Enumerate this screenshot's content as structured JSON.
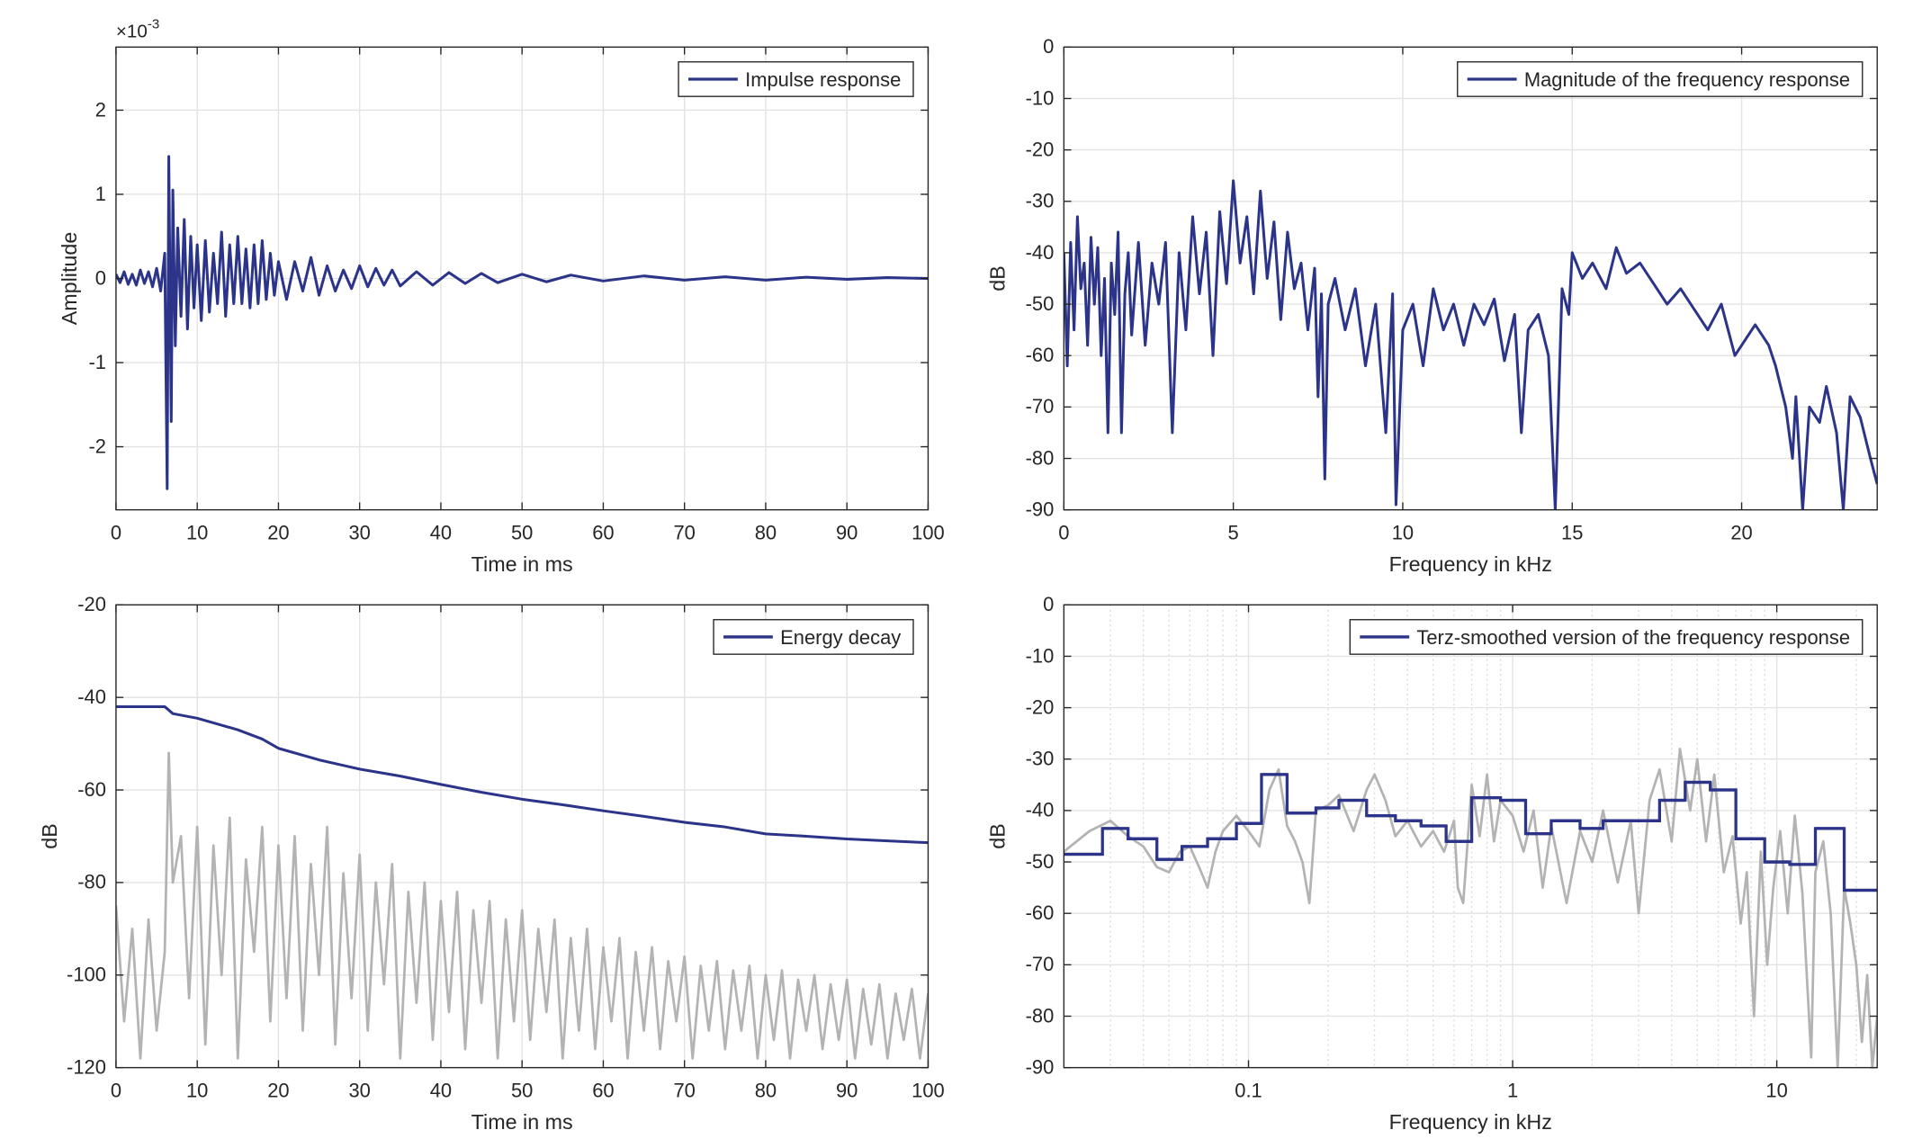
{
  "chart_data": [
    {
      "type": "line",
      "xlabel": "Time in ms",
      "ylabel": "Amplitude",
      "y_multiplier": "×10",
      "y_exponent": "-3",
      "xlim": [
        0,
        100
      ],
      "xticks": [
        0,
        10,
        20,
        30,
        40,
        50,
        60,
        70,
        80,
        90,
        100
      ],
      "ylim": [
        -2.75,
        2.75
      ],
      "yticks": [
        -2,
        -1,
        0,
        1,
        2
      ],
      "grid": true,
      "legend": "northeast",
      "series": [
        {
          "name": "Impulse response",
          "color": "#2b3488",
          "x": [
            0,
            0.5,
            1,
            1.5,
            2,
            2.5,
            3,
            3.5,
            4,
            4.5,
            5,
            5.5,
            6,
            6.3,
            6.5,
            6.8,
            7,
            7.3,
            7.6,
            8,
            8.4,
            8.8,
            9.2,
            9.6,
            10,
            10.5,
            11,
            11.5,
            12,
            12.5,
            13,
            13.5,
            14,
            14.5,
            15,
            15.5,
            16,
            16.5,
            17,
            17.5,
            18,
            18.5,
            19,
            19.5,
            20,
            21,
            22,
            23,
            24,
            25,
            26,
            27,
            28,
            29,
            30,
            31,
            32,
            33,
            34,
            35,
            37,
            39,
            41,
            43,
            45,
            47,
            50,
            53,
            56,
            60,
            65,
            70,
            75,
            80,
            85,
            90,
            95,
            100
          ],
          "values": [
            0.05,
            -0.05,
            0.08,
            -0.07,
            0.05,
            -0.08,
            0.1,
            -0.06,
            0.08,
            -0.1,
            0.12,
            -0.15,
            0.3,
            -2.5,
            1.45,
            -1.7,
            1.05,
            -0.8,
            0.6,
            -0.45,
            0.7,
            -0.6,
            0.5,
            -0.35,
            0.4,
            -0.5,
            0.45,
            -0.4,
            0.3,
            -0.3,
            0.55,
            -0.45,
            0.4,
            -0.3,
            0.5,
            -0.3,
            0.35,
            -0.35,
            0.4,
            -0.3,
            0.45,
            -0.25,
            0.3,
            -0.2,
            0.2,
            -0.25,
            0.2,
            -0.15,
            0.25,
            -0.2,
            0.15,
            -0.15,
            0.1,
            -0.12,
            0.15,
            -0.1,
            0.12,
            -0.08,
            0.1,
            -0.09,
            0.08,
            -0.08,
            0.07,
            -0.06,
            0.06,
            -0.05,
            0.05,
            -0.04,
            0.04,
            -0.03,
            0.03,
            -0.02,
            0.02,
            -0.02,
            0.015,
            -0.01,
            0.01,
            0
          ]
        }
      ]
    },
    {
      "type": "line",
      "xlabel": "Frequency in kHz",
      "ylabel": "dB",
      "xlim": [
        0,
        24
      ],
      "xticks": [
        0,
        5,
        10,
        15,
        20
      ],
      "ylim": [
        -90,
        0
      ],
      "yticks": [
        -90,
        -80,
        -70,
        -60,
        -50,
        -40,
        -30,
        -20,
        -10,
        0
      ],
      "grid": true,
      "legend": "northeast",
      "series": [
        {
          "name": "Magnitude of the frequency response",
          "color": "#2b3488",
          "x": [
            0,
            0.1,
            0.2,
            0.3,
            0.4,
            0.5,
            0.6,
            0.7,
            0.8,
            0.9,
            1.0,
            1.1,
            1.2,
            1.3,
            1.4,
            1.5,
            1.6,
            1.7,
            1.8,
            1.9,
            2.0,
            2.2,
            2.4,
            2.6,
            2.8,
            3.0,
            3.2,
            3.4,
            3.6,
            3.8,
            4.0,
            4.2,
            4.4,
            4.6,
            4.8,
            5.0,
            5.2,
            5.4,
            5.6,
            5.8,
            6.0,
            6.2,
            6.4,
            6.6,
            6.8,
            7.0,
            7.2,
            7.4,
            7.5,
            7.6,
            7.7,
            7.8,
            8.0,
            8.3,
            8.6,
            8.9,
            9.2,
            9.5,
            9.7,
            9.8,
            10.0,
            10.3,
            10.6,
            10.9,
            11.2,
            11.5,
            11.8,
            12.1,
            12.4,
            12.7,
            13.0,
            13.3,
            13.5,
            13.7,
            14.0,
            14.3,
            14.5,
            14.7,
            14.9,
            15.0,
            15.3,
            15.6,
            16.0,
            16.3,
            16.6,
            17.0,
            17.4,
            17.8,
            18.2,
            18.6,
            19.0,
            19.4,
            19.8,
            20.1,
            20.4,
            20.8,
            21.0,
            21.3,
            21.5,
            21.6,
            21.8,
            22.0,
            22.3,
            22.5,
            22.8,
            23.0,
            23.2,
            23.5,
            23.8,
            24.0
          ],
          "values": [
            -40,
            -62,
            -38,
            -55,
            -33,
            -47,
            -42,
            -58,
            -37,
            -50,
            -39,
            -60,
            -45,
            -75,
            -42,
            -52,
            -36,
            -75,
            -48,
            -40,
            -56,
            -38,
            -58,
            -42,
            -50,
            -38,
            -75,
            -40,
            -55,
            -33,
            -48,
            -36,
            -60,
            -32,
            -46,
            -26,
            -42,
            -33,
            -48,
            -28,
            -45,
            -34,
            -53,
            -36,
            -47,
            -42,
            -55,
            -43,
            -68,
            -48,
            -84,
            -50,
            -45,
            -55,
            -47,
            -62,
            -50,
            -75,
            -48,
            -89,
            -55,
            -50,
            -62,
            -47,
            -55,
            -50,
            -58,
            -50,
            -54,
            -49,
            -61,
            -52,
            -75,
            -55,
            -52,
            -60,
            -90,
            -47,
            -52,
            -40,
            -45,
            -42,
            -47,
            -39,
            -44,
            -42,
            -46,
            -50,
            -47,
            -51,
            -55,
            -50,
            -60,
            -57,
            -54,
            -58,
            -62,
            -70,
            -80,
            -68,
            -90,
            -70,
            -73,
            -66,
            -75,
            -90,
            -68,
            -72,
            -80,
            -85
          ]
        }
      ]
    },
    {
      "type": "line",
      "xlabel": "Time in ms",
      "ylabel": "dB",
      "xlim": [
        0,
        100
      ],
      "xticks": [
        0,
        10,
        20,
        30,
        40,
        50,
        60,
        70,
        80,
        90,
        100
      ],
      "ylim": [
        -120,
        -20
      ],
      "yticks": [
        -120,
        -100,
        -80,
        -60,
        -40,
        -20
      ],
      "grid": true,
      "legend": "northeast",
      "series": [
        {
          "color": "#b3b3b3",
          "x": [
            0,
            1,
            2,
            3,
            4,
            5,
            6,
            6.5,
            7,
            8,
            9,
            10,
            11,
            12,
            13,
            14,
            15,
            16,
            17,
            18,
            19,
            20,
            21,
            22,
            23,
            24,
            25,
            26,
            27,
            28,
            29,
            30,
            31,
            32,
            33,
            34,
            35,
            36,
            37,
            38,
            39,
            40,
            41,
            42,
            43,
            44,
            45,
            46,
            47,
            48,
            49,
            50,
            51,
            52,
            53,
            54,
            55,
            56,
            57,
            58,
            59,
            60,
            61,
            62,
            63,
            64,
            65,
            66,
            67,
            68,
            69,
            70,
            71,
            72,
            73,
            74,
            75,
            76,
            77,
            78,
            79,
            80,
            81,
            82,
            83,
            84,
            85,
            86,
            87,
            88,
            89,
            90,
            91,
            92,
            93,
            94,
            95,
            96,
            97,
            98,
            99,
            100
          ],
          "values": [
            -85,
            -110,
            -90,
            -118,
            -88,
            -112,
            -95,
            -52,
            -80,
            -70,
            -105,
            -68,
            -115,
            -72,
            -100,
            -66,
            -118,
            -75,
            -95,
            -68,
            -110,
            -72,
            -105,
            -70,
            -112,
            -76,
            -100,
            -68,
            -115,
            -78,
            -105,
            -74,
            -112,
            -80,
            -102,
            -76,
            -118,
            -82,
            -106,
            -80,
            -114,
            -84,
            -108,
            -82,
            -116,
            -86,
            -106,
            -84,
            -118,
            -88,
            -110,
            -86,
            -114,
            -90,
            -108,
            -88,
            -118,
            -92,
            -112,
            -90,
            -116,
            -94,
            -110,
            -92,
            -118,
            -95,
            -112,
            -94,
            -116,
            -97,
            -110,
            -96,
            -118,
            -98,
            -112,
            -97,
            -116,
            -99,
            -112,
            -98,
            -118,
            -100,
            -114,
            -99,
            -118,
            -101,
            -112,
            -100,
            -116,
            -102,
            -114,
            -101,
            -118,
            -103,
            -115,
            -102,
            -118,
            -104,
            -114,
            -103,
            -118,
            -104
          ]
        },
        {
          "name": "Energy decay",
          "color": "#2b3488",
          "x": [
            0,
            6,
            7,
            10,
            15,
            18,
            20,
            25,
            30,
            35,
            40,
            45,
            50,
            55,
            60,
            65,
            70,
            75,
            80,
            85,
            90,
            95,
            100
          ],
          "values": [
            -42,
            -42,
            -43.5,
            -44.5,
            -47,
            -49,
            -51,
            -53.5,
            -55.5,
            -57,
            -58.8,
            -60.5,
            -62,
            -63.2,
            -64.5,
            -65.7,
            -67,
            -68,
            -69.5,
            -70,
            -70.6,
            -71,
            -71.4
          ]
        }
      ]
    },
    {
      "type": "line",
      "xlabel": "Frequency in kHz",
      "ylabel": "dB",
      "xscale": "log",
      "xlim": [
        0.02,
        24
      ],
      "xticks": [
        0.1,
        1,
        10
      ],
      "xminor": [
        0.03,
        0.04,
        0.05,
        0.06,
        0.07,
        0.08,
        0.09,
        0.2,
        0.3,
        0.4,
        0.5,
        0.6,
        0.7,
        0.8,
        0.9,
        2,
        3,
        4,
        5,
        6,
        7,
        8,
        9,
        20
      ],
      "ylim": [
        -90,
        0
      ],
      "yticks": [
        -90,
        -80,
        -70,
        -60,
        -50,
        -40,
        -30,
        -20,
        -10,
        0
      ],
      "grid": true,
      "legend": "northeast",
      "series": [
        {
          "color": "#b3b3b3",
          "x": [
            0.02,
            0.025,
            0.03,
            0.035,
            0.04,
            0.045,
            0.05,
            0.055,
            0.06,
            0.065,
            0.07,
            0.075,
            0.08,
            0.09,
            0.1,
            0.11,
            0.12,
            0.13,
            0.14,
            0.15,
            0.16,
            0.17,
            0.18,
            0.2,
            0.22,
            0.25,
            0.28,
            0.3,
            0.33,
            0.36,
            0.4,
            0.45,
            0.5,
            0.55,
            0.6,
            0.62,
            0.65,
            0.7,
            0.75,
            0.8,
            0.85,
            0.9,
            1.0,
            1.1,
            1.2,
            1.3,
            1.4,
            1.6,
            1.8,
            2.0,
            2.2,
            2.5,
            2.8,
            3.0,
            3.3,
            3.6,
            4.0,
            4.3,
            4.7,
            5.0,
            5.4,
            5.8,
            6.3,
            6.8,
            7.3,
            7.7,
            8.2,
            8.7,
            9.2,
            9.7,
            10.3,
            11,
            11.7,
            12.5,
            13.5,
            14,
            15,
            16,
            17,
            18,
            19,
            20,
            21,
            22,
            23,
            24
          ],
          "values": [
            -48,
            -44,
            -42,
            -45,
            -47,
            -51,
            -52,
            -48,
            -47,
            -51,
            -55,
            -48,
            -44,
            -41,
            -44,
            -47,
            -36,
            -32,
            -43,
            -46,
            -50,
            -58,
            -40,
            -39,
            -37,
            -44,
            -36,
            -33,
            -38,
            -45,
            -42,
            -47,
            -44,
            -48,
            -42,
            -55,
            -58,
            -35,
            -45,
            -33,
            -46,
            -38,
            -41,
            -48,
            -40,
            -55,
            -43,
            -58,
            -44,
            -50,
            -40,
            -54,
            -42,
            -60,
            -38,
            -32,
            -46,
            -28,
            -40,
            -30,
            -46,
            -33,
            -52,
            -45,
            -62,
            -52,
            -80,
            -48,
            -70,
            -55,
            -44,
            -60,
            -41,
            -56,
            -88,
            -52,
            -46,
            -60,
            -90,
            -55,
            -62,
            -70,
            -85,
            -72,
            -90,
            -80
          ]
        },
        {
          "name": "Terz-smoothed version of the frequency response",
          "color": "#2b3488",
          "stairs": true,
          "edges": [
            0.02,
            0.028,
            0.035,
            0.045,
            0.056,
            0.07,
            0.09,
            0.112,
            0.14,
            0.18,
            0.22,
            0.28,
            0.36,
            0.45,
            0.56,
            0.7,
            0.9,
            1.12,
            1.4,
            1.8,
            2.2,
            2.8,
            3.6,
            4.5,
            5.6,
            7,
            9,
            11.2,
            14,
            18,
            24
          ],
          "values": [
            -48.5,
            -43.5,
            -45.5,
            -49.5,
            -47,
            -45.5,
            -42.5,
            -33,
            -40.5,
            -39.5,
            -38,
            -41,
            -42,
            -43,
            -46,
            -37.5,
            -38,
            -44.5,
            -42,
            -43.5,
            -42,
            -42,
            -38,
            -34.5,
            -36,
            -45.5,
            -50,
            -50.5,
            -43.5,
            -55.5
          ]
        }
      ]
    }
  ]
}
